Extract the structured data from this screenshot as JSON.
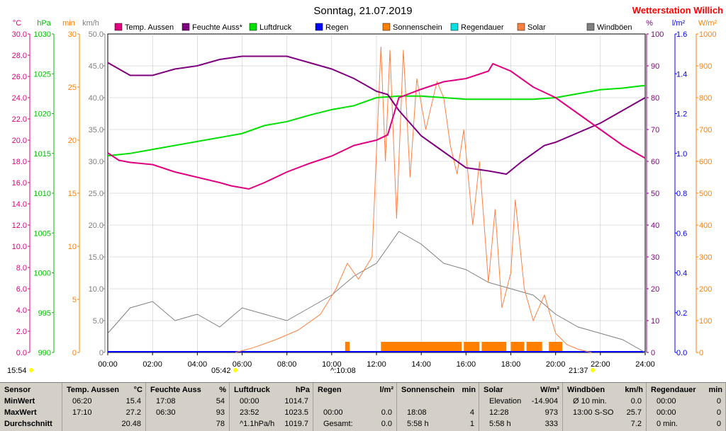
{
  "title": "Sonntag, 21.07.2019",
  "station": "Wetterstation Willich",
  "axis_units": {
    "left": [
      "°C",
      "hPa",
      "min",
      "km/h"
    ],
    "right": [
      "%",
      "l/m²",
      "W/m²"
    ]
  },
  "colors": {
    "temp": "#e0007f",
    "humidity": "#7f007f",
    "pressure": "#00e000",
    "rain": "#0000ff",
    "sunshine": "#ff8000",
    "raindur": "#00e0e0",
    "solar": "#ff8040",
    "gust": "#808080",
    "station": "#ff0000",
    "stats_bg": "#d4d0c8"
  },
  "markers": {
    "sunrise_left": "15:54",
    "sunrise": "05:42",
    "noon": "^:10:08",
    "sunset": "21:37"
  },
  "chart_data": {
    "type": "line",
    "x_unit": "hours",
    "x_ticks": [
      "00:00",
      "02:00",
      "04:00",
      "06:00",
      "08:00",
      "10:00",
      "12:00",
      "14:00",
      "16:00",
      "18:00",
      "20:00",
      "22:00",
      "24:00"
    ],
    "xlim": [
      0,
      24
    ],
    "axes": {
      "temp": {
        "min": 0,
        "max": 30,
        "ticks": [
          "0.0",
          "2.0",
          "4.0",
          "6.0",
          "8.0",
          "10.0",
          "12.0",
          "14.0",
          "16.0",
          "18.0",
          "20.0",
          "22.0",
          "24.0",
          "26.0",
          "28.0",
          "30.0"
        ]
      },
      "pressure": {
        "min": 990,
        "max": 1030,
        "ticks": [
          "990",
          "995",
          "1000",
          "1005",
          "1010",
          "1015",
          "1020",
          "1025",
          "1030"
        ]
      },
      "minutes": {
        "min": 0,
        "max": 30,
        "ticks": [
          "0",
          "5",
          "10",
          "15",
          "20",
          "25",
          "30"
        ]
      },
      "wind": {
        "min": 0,
        "max": 50,
        "ticks": [
          "0",
          "5.0",
          "10.0",
          "15.0",
          "20.0",
          "25.0",
          "30.0",
          "35.0",
          "40.0",
          "45.0",
          "50.0"
        ]
      },
      "humidity": {
        "min": 0,
        "max": 100,
        "ticks": [
          "0",
          "10",
          "20",
          "30",
          "40",
          "50",
          "60",
          "70",
          "80",
          "90",
          "100"
        ]
      },
      "rain": {
        "min": 0,
        "max": 1.6,
        "ticks": [
          "0.0",
          "0.2",
          "0.4",
          "0.6",
          "0.8",
          "1.0",
          "1.2",
          "1.4",
          "1.6"
        ]
      },
      "solar": {
        "min": 0,
        "max": 1000,
        "ticks": [
          "0",
          "100",
          "200",
          "300",
          "400",
          "500",
          "600",
          "700",
          "800",
          "900",
          "1000"
        ]
      }
    },
    "legend": [
      "Temp. Aussen",
      "Feuchte Auss*",
      "Luftdruck",
      "Regen",
      "Sonnenschein",
      "Regendauer",
      "Solar",
      "Windböen"
    ],
    "series": [
      {
        "name": "Temp. Aussen",
        "axis": "temp",
        "color": "#e0007f",
        "points": [
          [
            0,
            18.8
          ],
          [
            0.5,
            18.1
          ],
          [
            1,
            17.9
          ],
          [
            2,
            17.7
          ],
          [
            3,
            17.0
          ],
          [
            4,
            16.5
          ],
          [
            5,
            16.0
          ],
          [
            5.5,
            15.7
          ],
          [
            6.3,
            15.4
          ],
          [
            7,
            16.0
          ],
          [
            8,
            17.0
          ],
          [
            9,
            17.8
          ],
          [
            10,
            18.5
          ],
          [
            11,
            19.5
          ],
          [
            12,
            20.0
          ],
          [
            12.5,
            20.5
          ],
          [
            13,
            24.0
          ],
          [
            14,
            24.8
          ],
          [
            15,
            25.5
          ],
          [
            16,
            25.8
          ],
          [
            17,
            26.5
          ],
          [
            17.2,
            27.2
          ],
          [
            18,
            26.5
          ],
          [
            19,
            25.0
          ],
          [
            20,
            24.0
          ],
          [
            21,
            22.5
          ],
          [
            22,
            21.0
          ],
          [
            23,
            19.5
          ],
          [
            24,
            18.3
          ]
        ]
      },
      {
        "name": "Feuchte Auss*",
        "axis": "humidity",
        "color": "#7f007f",
        "points": [
          [
            0,
            91
          ],
          [
            0.5,
            89
          ],
          [
            1,
            87
          ],
          [
            2,
            87
          ],
          [
            3,
            89
          ],
          [
            4,
            90
          ],
          [
            5,
            92
          ],
          [
            6,
            93
          ],
          [
            6.5,
            93
          ],
          [
            8,
            93
          ],
          [
            9,
            91
          ],
          [
            10,
            89
          ],
          [
            11,
            86
          ],
          [
            12,
            82
          ],
          [
            12.5,
            81
          ],
          [
            13,
            76
          ],
          [
            14,
            68
          ],
          [
            15,
            63
          ],
          [
            16,
            58
          ],
          [
            17,
            57
          ],
          [
            17.8,
            56
          ],
          [
            18.5,
            60
          ],
          [
            19.5,
            65
          ],
          [
            20,
            66
          ],
          [
            21,
            69
          ],
          [
            22,
            72
          ],
          [
            23,
            76
          ],
          [
            24,
            80
          ]
        ]
      },
      {
        "name": "Luftdruck",
        "axis": "pressure",
        "color": "#00e000",
        "points": [
          [
            0,
            1014.7
          ],
          [
            1,
            1015.0
          ],
          [
            2,
            1015.5
          ],
          [
            3,
            1016.0
          ],
          [
            4,
            1016.5
          ],
          [
            5,
            1017.0
          ],
          [
            6,
            1017.5
          ],
          [
            7,
            1018.5
          ],
          [
            8,
            1019.0
          ],
          [
            9,
            1019.8
          ],
          [
            10,
            1020.5
          ],
          [
            11,
            1021.0
          ],
          [
            12,
            1022.0
          ],
          [
            13,
            1022.2
          ],
          [
            14,
            1022.2
          ],
          [
            15,
            1022.0
          ],
          [
            16,
            1021.8
          ],
          [
            17,
            1021.8
          ],
          [
            18,
            1021.8
          ],
          [
            19,
            1021.8
          ],
          [
            20,
            1022.0
          ],
          [
            21,
            1022.5
          ],
          [
            22,
            1023.0
          ],
          [
            23,
            1023.2
          ],
          [
            23.87,
            1023.5
          ],
          [
            24,
            1023.5
          ]
        ]
      },
      {
        "name": "Solar",
        "axis": "solar",
        "color": "#ff8040",
        "points": [
          [
            5.7,
            0
          ],
          [
            6.5,
            15
          ],
          [
            7.5,
            40
          ],
          [
            8.5,
            70
          ],
          [
            9.5,
            120
          ],
          [
            10.2,
            200
          ],
          [
            10.7,
            280
          ],
          [
            11.2,
            230
          ],
          [
            11.8,
            300
          ],
          [
            12.2,
            960
          ],
          [
            12.4,
            600
          ],
          [
            12.6,
            950
          ],
          [
            12.9,
            420
          ],
          [
            13.2,
            950
          ],
          [
            13.5,
            550
          ],
          [
            13.8,
            860
          ],
          [
            14.2,
            700
          ],
          [
            14.7,
            850
          ],
          [
            15.0,
            800
          ],
          [
            15.3,
            650
          ],
          [
            15.6,
            560
          ],
          [
            15.9,
            700
          ],
          [
            16.3,
            400
          ],
          [
            16.6,
            600
          ],
          [
            17.0,
            220
          ],
          [
            17.3,
            450
          ],
          [
            17.6,
            140
          ],
          [
            18.0,
            250
          ],
          [
            18.2,
            480
          ],
          [
            18.6,
            200
          ],
          [
            19.0,
            100
          ],
          [
            19.5,
            180
          ],
          [
            20.0,
            60
          ],
          [
            20.5,
            25
          ],
          [
            21.0,
            10
          ],
          [
            21.6,
            0
          ]
        ]
      },
      {
        "name": "Windböen",
        "axis": "wind",
        "color": "#808080",
        "points": [
          [
            0,
            3
          ],
          [
            1,
            7
          ],
          [
            2,
            8
          ],
          [
            3,
            5
          ],
          [
            4,
            6
          ],
          [
            5,
            4
          ],
          [
            6,
            7
          ],
          [
            7,
            6
          ],
          [
            8,
            5
          ],
          [
            9,
            7
          ],
          [
            10,
            9
          ],
          [
            11,
            12
          ],
          [
            12,
            14
          ],
          [
            13,
            19
          ],
          [
            14,
            17
          ],
          [
            15,
            14
          ],
          [
            16,
            13
          ],
          [
            17,
            11
          ],
          [
            18,
            10
          ],
          [
            19,
            9
          ],
          [
            20,
            6
          ],
          [
            21,
            4
          ],
          [
            22,
            3
          ],
          [
            23,
            2
          ],
          [
            24,
            0
          ]
        ]
      }
    ],
    "sunshine_blocks": [
      [
        10.6,
        10.8
      ],
      [
        12.2,
        15.8
      ],
      [
        15.9,
        16.6
      ],
      [
        16.7,
        17.8
      ],
      [
        18.0,
        18.6
      ],
      [
        18.7,
        19.4
      ],
      [
        19.7,
        20.3
      ]
    ],
    "rain_level": 0
  },
  "stats": {
    "columns": [
      {
        "header": "Sensor",
        "unit": "",
        "rows": [
          [
            "MinWert",
            ""
          ],
          [
            "MaxWert",
            ""
          ],
          [
            "Durchschnitt",
            ""
          ]
        ]
      },
      {
        "header": "Temp. Aussen",
        "unit": "°C",
        "rows": [
          [
            "06:20",
            "15.4"
          ],
          [
            "17:10",
            "27.2"
          ],
          [
            "",
            "20.48"
          ]
        ]
      },
      {
        "header": "Feuchte Auss",
        "unit": "%",
        "rows": [
          [
            "17:08",
            "54"
          ],
          [
            "06:30",
            "93"
          ],
          [
            "",
            "78"
          ]
        ]
      },
      {
        "header": "Luftdruck",
        "unit": "hPa",
        "rows": [
          [
            "00:00",
            "1014.7"
          ],
          [
            "23:52",
            "1023.5"
          ],
          [
            "^1.1hPa/h",
            "1019.7"
          ]
        ]
      },
      {
        "header": "Regen",
        "unit": "l/m²",
        "rows": [
          [
            "",
            ""
          ],
          [
            "00:00",
            "0.0"
          ],
          [
            "Gesamt:",
            "0.0"
          ]
        ]
      },
      {
        "header": "Sonnenschein",
        "unit": "min",
        "rows": [
          [
            "",
            ""
          ],
          [
            "18:08",
            "4"
          ],
          [
            "5:58 h",
            "1"
          ]
        ]
      },
      {
        "header": "Solar",
        "unit": "W/m²",
        "rows": [
          [
            "Elevation",
            "-14.904"
          ],
          [
            "12:28",
            "973"
          ],
          [
            "5:58 h",
            "333"
          ]
        ]
      },
      {
        "header": "Windböen",
        "unit": "km/h",
        "rows": [
          [
            "Ø 10 min.",
            "0.0"
          ],
          [
            "13:00   S-SO",
            "25.7"
          ],
          [
            "",
            "7.2"
          ]
        ]
      },
      {
        "header": "Regendauer",
        "unit": "min",
        "rows": [
          [
            "00:00",
            "0"
          ],
          [
            "00:00",
            "0"
          ],
          [
            "0 min.",
            "0"
          ]
        ]
      }
    ]
  }
}
